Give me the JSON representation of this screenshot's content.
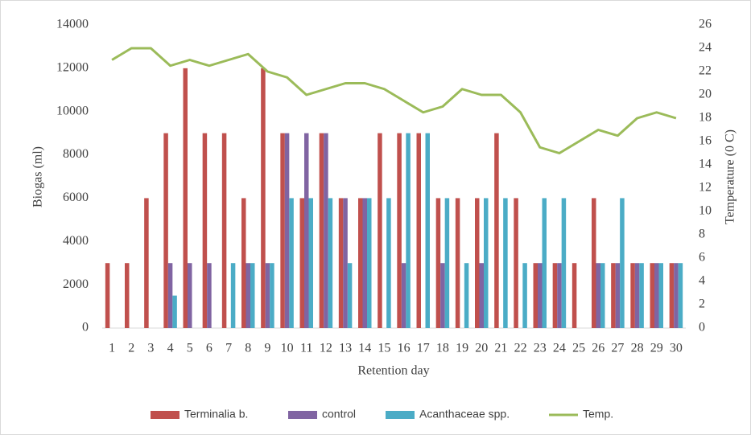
{
  "chart_data": {
    "type": "bar",
    "xlabel": "Retention day",
    "ylabel": "Biogas (ml)",
    "y2label": "Temperature (0 C)",
    "categories": [
      "1",
      "2",
      "3",
      "4",
      "5",
      "6",
      "7",
      "8",
      "9",
      "10",
      "11",
      "12",
      "13",
      "14",
      "15",
      "16",
      "17",
      "18",
      "19",
      "20",
      "21",
      "22",
      "23",
      "24",
      "25",
      "26",
      "27",
      "28",
      "29",
      "30"
    ],
    "series": [
      {
        "name": "Terminalia b.",
        "color": "#c0504d",
        "type": "bar",
        "values": [
          3000,
          3000,
          6000,
          9000,
          12000,
          9000,
          9000,
          6000,
          12000,
          9000,
          6000,
          9000,
          6000,
          6000,
          9000,
          9000,
          9000,
          6000,
          6000,
          6000,
          9000,
          6000,
          3000,
          3000,
          3000,
          6000,
          3000,
          3000,
          3000,
          3000
        ]
      },
      {
        "name": "control",
        "color": "#8064a2",
        "type": "bar",
        "values": [
          0,
          0,
          0,
          3000,
          3000,
          3000,
          0,
          3000,
          3000,
          9000,
          9000,
          9000,
          6000,
          6000,
          0,
          3000,
          0,
          3000,
          0,
          3000,
          0,
          0,
          3000,
          3000,
          0,
          3000,
          3000,
          3000,
          3000,
          3000
        ]
      },
      {
        "name": "Acanthaceae spp.",
        "color": "#4bacc6",
        "type": "bar",
        "values": [
          0,
          0,
          0,
          1500,
          0,
          0,
          3000,
          3000,
          3000,
          6000,
          6000,
          6000,
          3000,
          6000,
          6000,
          9000,
          9000,
          6000,
          3000,
          6000,
          6000,
          3000,
          6000,
          6000,
          0,
          3000,
          6000,
          3000,
          3000,
          3000
        ]
      },
      {
        "name": "Temp.",
        "color": "#9bbb59",
        "type": "line",
        "axis": "y2",
        "values": [
          23,
          24,
          24,
          22.5,
          23,
          22.5,
          23,
          23.5,
          22,
          21.5,
          20,
          20.5,
          21,
          21,
          20.5,
          19.5,
          18.5,
          19,
          20.5,
          20,
          20,
          18.5,
          15.5,
          15,
          16,
          17,
          16.5,
          18,
          18.5,
          18
        ]
      }
    ],
    "ylim": [
      0,
      14000
    ],
    "yticks": [
      0,
      2000,
      4000,
      6000,
      8000,
      10000,
      12000,
      14000
    ],
    "y2lim": [
      0,
      26
    ],
    "y2ticks": [
      0,
      2,
      4,
      6,
      8,
      10,
      12,
      14,
      16,
      18,
      20,
      22,
      24,
      26
    ],
    "grid": false,
    "legend": "bottom"
  }
}
